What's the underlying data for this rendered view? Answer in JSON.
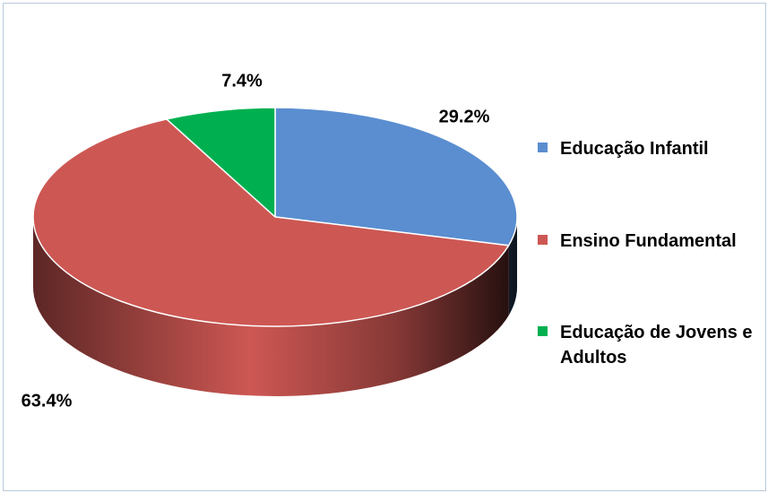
{
  "chart_data": {
    "type": "pie3d",
    "categories": [
      "Educação Infantil",
      "Ensino Fundamental",
      "Educação de Jovens e Adultos"
    ],
    "values": [
      29.2,
      63.4,
      7.4
    ],
    "value_labels": [
      "29.2%",
      "63.4%",
      "7.4%"
    ],
    "colors": [
      "#5a8ed0",
      "#cd5753",
      "#00b050"
    ],
    "legend": "right"
  }
}
